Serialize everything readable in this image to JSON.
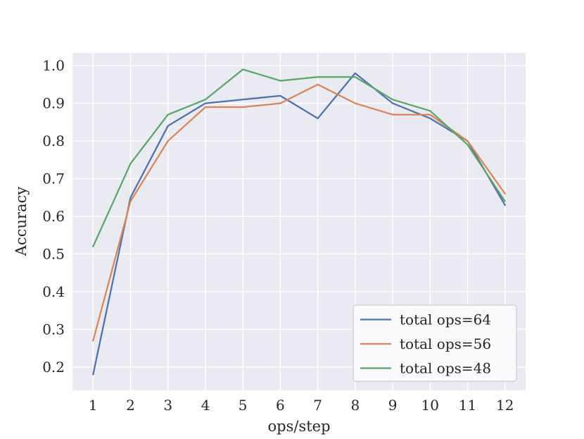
{
  "chart_data": {
    "type": "line",
    "title": "",
    "xlabel": "ops/step",
    "ylabel": "Accuracy",
    "x": [
      1,
      2,
      3,
      4,
      5,
      6,
      7,
      8,
      9,
      10,
      11,
      12
    ],
    "series": [
      {
        "name": "total ops=64",
        "color": "#4c72b0",
        "values": [
          0.18,
          0.65,
          0.84,
          0.9,
          0.91,
          0.92,
          0.86,
          0.98,
          0.9,
          0.86,
          0.8,
          0.63
        ]
      },
      {
        "name": "total ops=56",
        "color": "#dd8452",
        "values": [
          0.27,
          0.64,
          0.8,
          0.89,
          0.89,
          0.9,
          0.95,
          0.9,
          0.87,
          0.87,
          0.8,
          0.66
        ]
      },
      {
        "name": "total ops=48",
        "color": "#55a868",
        "values": [
          0.52,
          0.74,
          0.87,
          0.91,
          0.99,
          0.96,
          0.97,
          0.97,
          0.91,
          0.88,
          0.79,
          0.64
        ]
      }
    ],
    "xticks": [
      "1",
      "2",
      "3",
      "4",
      "5",
      "6",
      "7",
      "8",
      "9",
      "10",
      "11",
      "12"
    ],
    "ytick_values": [
      0.2,
      0.3,
      0.4,
      0.5,
      0.6,
      0.7,
      0.8,
      0.9,
      1.0
    ],
    "ytick_labels": [
      "0.2",
      "0.3",
      "0.4",
      "0.5",
      "0.6",
      "0.7",
      "0.8",
      "0.9",
      "1.0"
    ],
    "xlim": [
      0.45,
      12.55
    ],
    "ylim": [
      0.138,
      1.034
    ],
    "grid": true,
    "legend_position": "lower right",
    "colors": {
      "figure_bg": "#ffffff",
      "plot_bg": "#eaeaf2",
      "grid": "#ffffff",
      "text": "#262626",
      "legend_bg": "#fafafc",
      "legend_border": "#cccccc"
    }
  }
}
